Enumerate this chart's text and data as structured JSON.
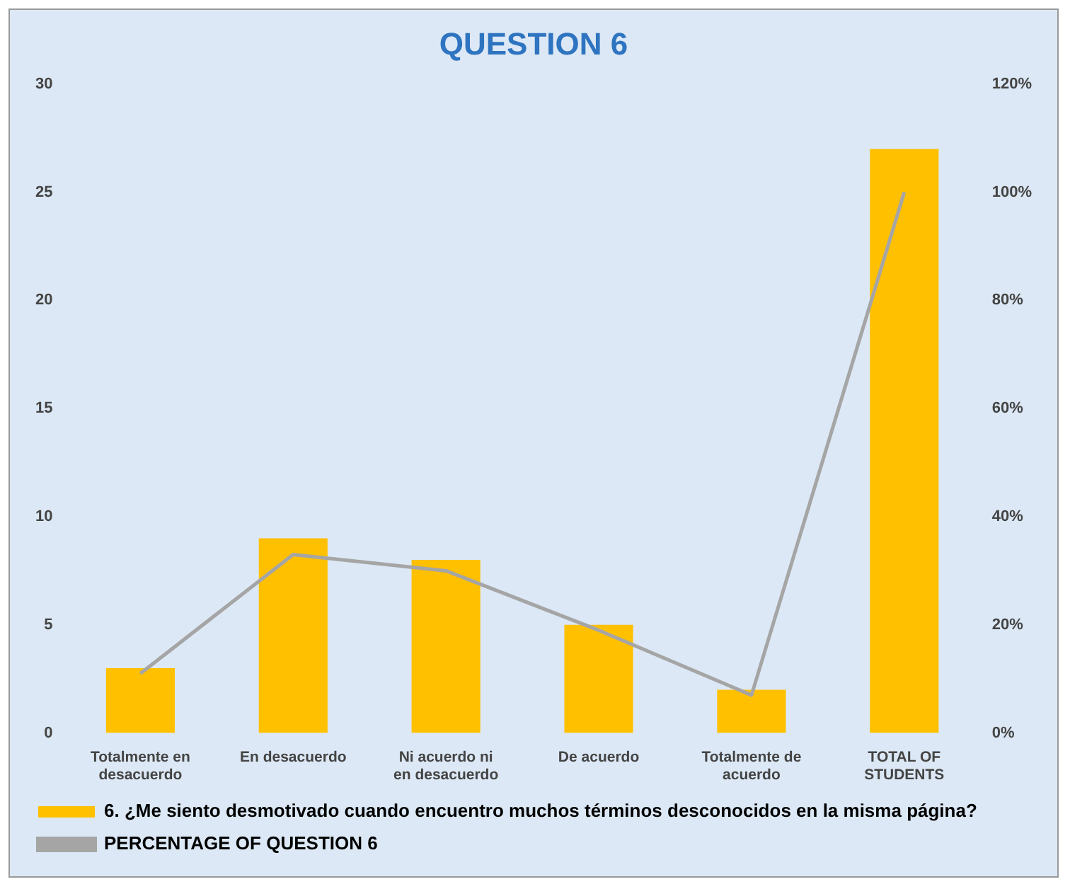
{
  "chart_data": {
    "type": "bar",
    "title": "QUESTION 6",
    "categories": [
      "Totalmente en desacuerdo",
      "En desacuerdo",
      "Ni acuerdo ni en desacuerdo",
      "De acuerdo",
      "Totalmente de acuerdo",
      "TOTAL OF STUDENTS"
    ],
    "series": [
      {
        "name": "6. ¿Me siento desmotivado cuando encuentro muchos términos desconocidos en la misma página?",
        "color": "#ffc000",
        "values": [
          3,
          9,
          8,
          5,
          2,
          27
        ]
      },
      {
        "name": "PERCENTAGE OF QUESTION 6",
        "type": "line",
        "axis": "y2",
        "color": "#a5a5a5",
        "values": [
          11,
          33,
          30,
          19,
          7,
          100
        ]
      }
    ],
    "ylim": [
      0,
      30
    ],
    "yticks": [
      0,
      5,
      10,
      15,
      20,
      25,
      30
    ],
    "y2lim": [
      0,
      120
    ],
    "y2ticks": [
      {
        "value": 0,
        "label": "0%"
      },
      {
        "value": 20,
        "label": "20%"
      },
      {
        "value": 40,
        "label": "40%"
      },
      {
        "value": 60,
        "label": "60%"
      },
      {
        "value": 80,
        "label": "80%"
      },
      {
        "value": 100,
        "label": "100%"
      },
      {
        "value": 120,
        "label": "120%"
      }
    ],
    "grid": false,
    "legend": "bottom",
    "marker": "none"
  }
}
